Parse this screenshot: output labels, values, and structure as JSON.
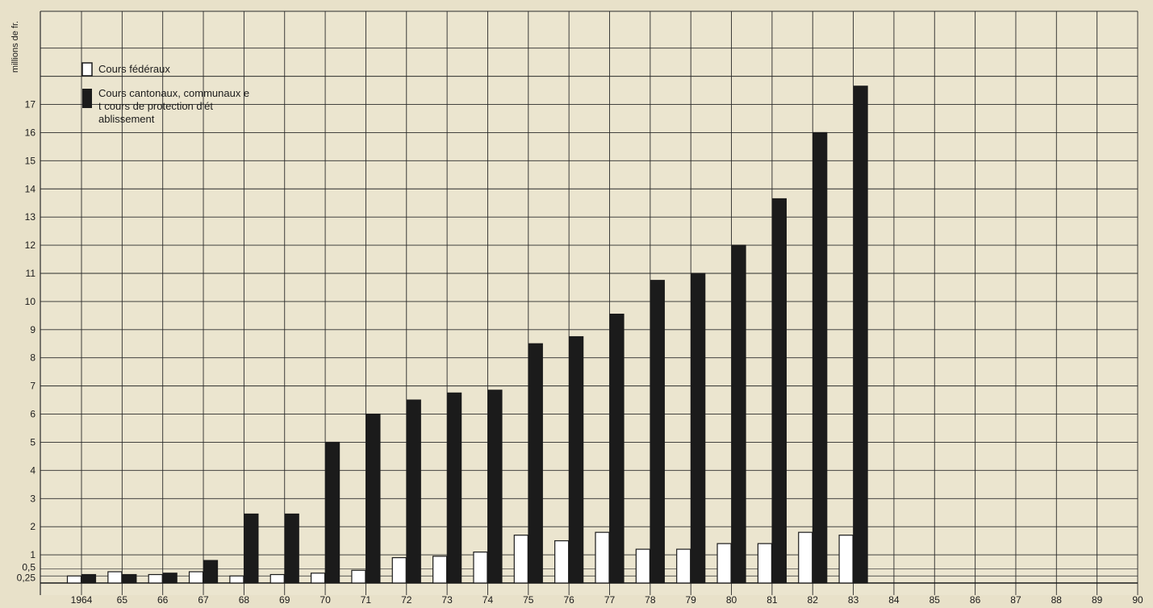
{
  "chart_data": {
    "type": "bar",
    "title": "",
    "xlabel": "",
    "ylabel": "millions de fr.",
    "ylim": [
      0,
      19.25
    ],
    "grid": true,
    "legend_position": "top-left",
    "categories": [
      "1964",
      "65",
      "66",
      "67",
      "68",
      "69",
      "70",
      "71",
      "72",
      "73",
      "74",
      "75",
      "76",
      "77",
      "78",
      "79",
      "80",
      "81",
      "82",
      "83",
      "84",
      "85",
      "86",
      "87",
      "88",
      "89",
      "90"
    ],
    "y_ticks": [
      "0,25",
      "0,5",
      "1",
      "2",
      "3",
      "4",
      "5",
      "6",
      "7",
      "8",
      "9",
      "10",
      "11",
      "12",
      "13",
      "14",
      "15",
      "16",
      "17"
    ],
    "series": [
      {
        "name": "Cours fédéraux",
        "color": "#ffffff",
        "values": [
          0.25,
          0.4,
          0.3,
          0.4,
          0.25,
          0.3,
          0.35,
          0.45,
          0.9,
          0.95,
          1.1,
          1.7,
          1.5,
          1.8,
          1.2,
          1.2,
          1.4,
          1.4,
          1.8,
          1.7,
          null,
          null,
          null,
          null,
          null,
          null,
          null
        ]
      },
      {
        "name": "Cours cantonaux, communaux et cours de protection d'établissement",
        "color": "#1b1b1b",
        "values": [
          0.3,
          0.3,
          0.35,
          0.8,
          2.45,
          2.45,
          5.0,
          6.0,
          6.5,
          6.75,
          6.85,
          8.5,
          8.75,
          9.55,
          10.75,
          11.0,
          12.0,
          13.65,
          16.0,
          17.65,
          null,
          null,
          null,
          null,
          null,
          null,
          null
        ]
      }
    ]
  }
}
